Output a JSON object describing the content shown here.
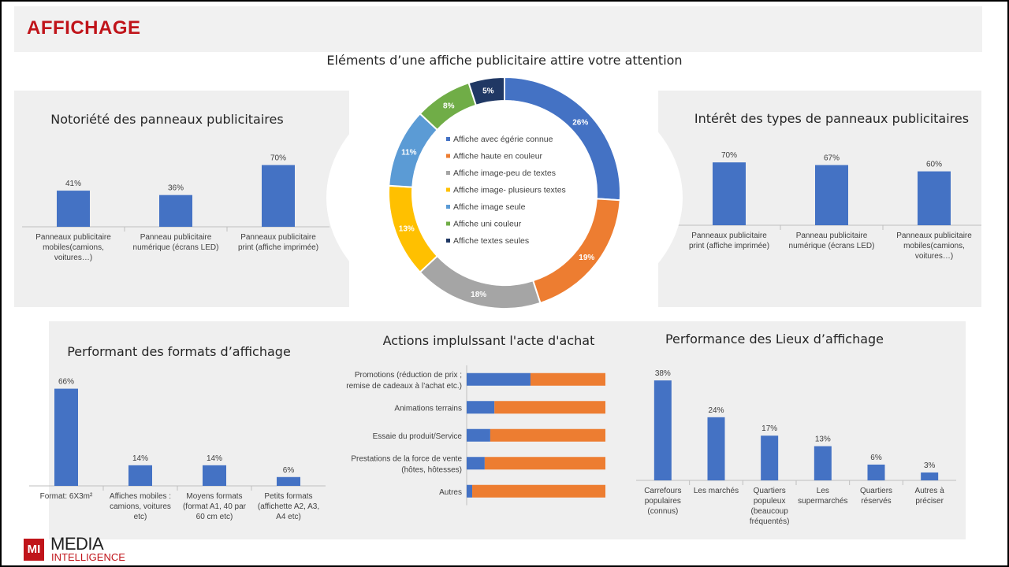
{
  "header": {
    "title": "AFFICHAGE"
  },
  "logo": {
    "mark": "MI",
    "line1": "MEDIA",
    "line2": "INTELLIGENCE"
  },
  "colors": {
    "blue": "#4472c4",
    "orange": "#ed7d31",
    "title_red": "#c0141a"
  },
  "chart_data": [
    {
      "id": "notoriete",
      "type": "bar",
      "title": "Notoriété des panneaux publicitaires",
      "categories": [
        "Panneaux publicitaire mobiles(camions, voitures…)",
        "Panneau publicitaire numérique (écrans LED)",
        "Panneaux publicitaire print (affiche imprimée)"
      ],
      "category_lines": [
        [
          "Panneaux publicitaire",
          "mobiles(camions,",
          "voitures…)"
        ],
        [
          "Panneau publicitaire",
          "numérique (écrans LED)"
        ],
        [
          "Panneaux publicitaire",
          "print (affiche imprimée)"
        ]
      ],
      "values": [
        41,
        36,
        70
      ],
      "labels": [
        "41%",
        "36%",
        "70%"
      ],
      "ylim": [
        0,
        100
      ]
    },
    {
      "id": "elements",
      "type": "pie",
      "title": "Eléments d’une affiche publicitaire attire votre attention",
      "categories": [
        "Affiche avec égérie connue",
        "Affiche haute en couleur",
        "Affiche image-peu de textes",
        "Affiche image- plusieurs textes",
        "Affiche image seule",
        "Affiche uni couleur",
        "Affiche textes seules"
      ],
      "values": [
        26,
        19,
        18,
        13,
        11,
        8,
        5
      ],
      "labels": [
        "26%",
        "19%",
        "18%",
        "13%",
        "11%",
        "8%",
        "5%"
      ],
      "colors": [
        "#4472c4",
        "#ed7d31",
        "#a5a5a5",
        "#ffc000",
        "#5b9bd5",
        "#70ad47",
        "#203864"
      ],
      "legend": "center"
    },
    {
      "id": "interet",
      "type": "bar",
      "title": "Intérêt des types de panneaux publicitaires",
      "categories": [
        "Panneaux publicitaire print (affiche imprimée)",
        "Panneau publicitaire numérique (écrans LED)",
        "Panneaux publicitaire mobiles(camions, voitures…)"
      ],
      "category_lines": [
        [
          "Panneaux publicitaire",
          "print (affiche imprimée)"
        ],
        [
          "Panneau publicitaire",
          "numérique (écrans LED)"
        ],
        [
          "Panneaux publicitaire",
          "mobiles(camions,",
          "voitures…)"
        ]
      ],
      "values": [
        70,
        67,
        60
      ],
      "labels": [
        "70%",
        "67%",
        "60%"
      ],
      "ylim": [
        0,
        100
      ]
    },
    {
      "id": "formats",
      "type": "bar",
      "title": "Performant des formats d’affichage",
      "categories": [
        "Format: 6X3m²",
        "Affiches mobiles : camions, voitures etc)",
        "Moyens formats (format A1, 40 par 60 cm etc)",
        "Petits formats (affichette A2, A3, A4 etc)"
      ],
      "category_lines": [
        [
          "Format: 6X3m²"
        ],
        [
          "Affiches mobiles :",
          "camions, voitures",
          "etc)"
        ],
        [
          "Moyens formats",
          "(format A1, 40 par",
          "60 cm etc)"
        ],
        [
          "Petits formats",
          "(affichette A2, A3,",
          "A4 etc)"
        ]
      ],
      "values": [
        66,
        14,
        14,
        6
      ],
      "labels": [
        "66%",
        "14%",
        "14%",
        "6%"
      ],
      "ylim": [
        0,
        100
      ]
    },
    {
      "id": "actions",
      "type": "bar",
      "orientation": "horizontal",
      "stacked": true,
      "title": "Actions implulssant l'acte d'achat",
      "categories": [
        "Promotions (réduction de prix ; remise de cadeaux à l’achat etc.)",
        "Animations terrains",
        "Essaie du produit/Service",
        "Prestations de la force de vente (hôtes, hôtesses)",
        "Autres"
      ],
      "category_lines": [
        [
          "Promotions (réduction de prix ;",
          "remise de cadeaux à l’achat etc.)"
        ],
        [
          "Animations terrains"
        ],
        [
          "Essaie du produit/Service"
        ],
        [
          "Prestations de la force de vente",
          "(hôtes, hôtesses)"
        ],
        [
          "Autres"
        ]
      ],
      "series": [
        {
          "values": [
            46,
            20,
            17,
            13,
            4
          ]
        },
        {
          "values": [
            54,
            80,
            83,
            87,
            96
          ]
        }
      ],
      "xlim": [
        0,
        100
      ]
    },
    {
      "id": "lieux",
      "type": "bar",
      "title": "Performance des Lieux d’affichage",
      "categories": [
        "Carrefours populaires (connus)",
        "Les marchés",
        "Quartiers populeux (beaucoup fréquentés)",
        "Les supermarchés",
        "Quartiers réservés",
        "Autres à préciser"
      ],
      "category_lines": [
        [
          "Carrefours",
          "populaires",
          "(connus)"
        ],
        [
          "Les marchés"
        ],
        [
          "Quartiers",
          "populeux",
          "(beaucoup",
          "fréquentés)"
        ],
        [
          "Les",
          "supermarchés"
        ],
        [
          "Quartiers",
          "réservés"
        ],
        [
          "Autres à",
          "préciser"
        ]
      ],
      "values": [
        38,
        24,
        17,
        13,
        6,
        3
      ],
      "labels": [
        "38%",
        "24%",
        "17%",
        "13%",
        "6%",
        "3%"
      ],
      "ylim": [
        0,
        50
      ]
    }
  ]
}
